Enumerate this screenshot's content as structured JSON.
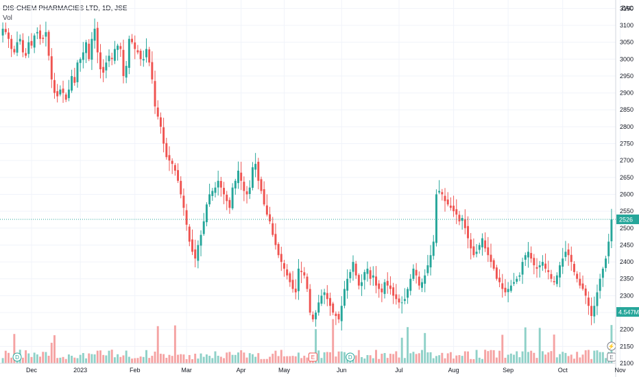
{
  "header": {
    "symbol": "DIS-CHEM PHARMACIES LTD, 1D, JSE",
    "volume_label": "Vol"
  },
  "currency": "ZAC",
  "colors": {
    "up": "#26a69a",
    "down": "#ef5350",
    "up_vol": "#8fd1c8",
    "down_vol": "#f5a3a3",
    "grid": "#f0f3fa"
  },
  "price_badge": {
    "value": "2526",
    "price": 2526
  },
  "volume_badge": {
    "value": "4.547M",
    "level_price": 2252
  },
  "markers": [
    {
      "label": "D",
      "type": "dividend",
      "x_index": 5
    },
    {
      "label": "E",
      "type": "earnings",
      "x_index": 108
    },
    {
      "label": "D",
      "type": "dividend",
      "x_index": 121
    },
    {
      "label": "⚡",
      "type": "event",
      "x_index": 212
    },
    {
      "label": "E",
      "type": "earnings",
      "x_index": 212
    }
  ],
  "chart_data": {
    "type": "candlestick",
    "title": "DIS-CHEM PHARMACIES LTD, 1D, JSE",
    "ylabel": "ZAC",
    "ylim": [
      2100,
      3175
    ],
    "y_ticks": [
      2100,
      2150,
      2200,
      2250,
      2300,
      2350,
      2400,
      2450,
      2500,
      2550,
      2600,
      2650,
      2700,
      2750,
      2800,
      2850,
      2900,
      2950,
      3000,
      3050,
      3100,
      3150
    ],
    "x_ticks": [
      {
        "label": "Dec",
        "index": 10
      },
      {
        "label": "2023",
        "index": 27
      },
      {
        "label": "Feb",
        "index": 46
      },
      {
        "label": "Mar",
        "index": 64
      },
      {
        "label": "Apr",
        "index": 83
      },
      {
        "label": "May",
        "index": 98
      },
      {
        "label": "Jun",
        "index": 118
      },
      {
        "label": "Jul",
        "index": 138
      },
      {
        "label": "Aug",
        "index": 157
      },
      {
        "label": "Sep",
        "index": 176
      },
      {
        "label": "Oct",
        "index": 195
      },
      {
        "label": "Nov",
        "index": 215
      }
    ],
    "close": [
      3090,
      3080,
      3060,
      3030,
      3020,
      3050,
      3060,
      3020,
      3010,
      3050,
      3040,
      3070,
      3080,
      3060,
      3060,
      3080,
      3010,
      2940,
      2900,
      2890,
      2910,
      2900,
      2880,
      2910,
      2950,
      2930,
      2990,
      3000,
      3020,
      3050,
      3000,
      3060,
      3090,
      3020,
      2970,
      2960,
      2990,
      3010,
      3000,
      3030,
      3040,
      3030,
      2950,
      2980,
      3060,
      3050,
      3030,
      3020,
      3000,
      3000,
      3030,
      2990,
      2940,
      2860,
      2830,
      2800,
      2750,
      2710,
      2700,
      2690,
      2670,
      2640,
      2600,
      2560,
      2510,
      2460,
      2430,
      2410,
      2450,
      2480,
      2520,
      2570,
      2600,
      2610,
      2620,
      2640,
      2620,
      2600,
      2580,
      2560,
      2620,
      2640,
      2670,
      2640,
      2610,
      2600,
      2620,
      2680,
      2690,
      2640,
      2610,
      2570,
      2540,
      2520,
      2480,
      2450,
      2420,
      2400,
      2380,
      2360,
      2340,
      2320,
      2310,
      2380,
      2370,
      2360,
      2320,
      2250,
      2230,
      2250,
      2280,
      2300,
      2310,
      2290,
      2270,
      2250,
      2240,
      2230,
      2270,
      2320,
      2350,
      2370,
      2400,
      2360,
      2330,
      2340,
      2370,
      2380,
      2350,
      2360,
      2330,
      2320,
      2310,
      2340,
      2330,
      2320,
      2300,
      2290,
      2280,
      2280,
      2290,
      2320,
      2350,
      2380,
      2360,
      2330,
      2340,
      2360,
      2390,
      2420,
      2460,
      2600,
      2610,
      2600,
      2580,
      2570,
      2560,
      2550,
      2540,
      2520,
      2530,
      2500,
      2470,
      2440,
      2420,
      2430,
      2450,
      2470,
      2440,
      2420,
      2400,
      2380,
      2350,
      2340,
      2320,
      2310,
      2320,
      2330,
      2340,
      2350,
      2360,
      2400,
      2420,
      2430,
      2410,
      2390,
      2380,
      2390,
      2400,
      2380,
      2370,
      2350,
      2340,
      2360,
      2390,
      2410,
      2430,
      2420,
      2400,
      2370,
      2350,
      2330,
      2320,
      2300,
      2270,
      2240,
      2270,
      2310,
      2350,
      2380,
      2410,
      2460,
      2526
    ]
  }
}
